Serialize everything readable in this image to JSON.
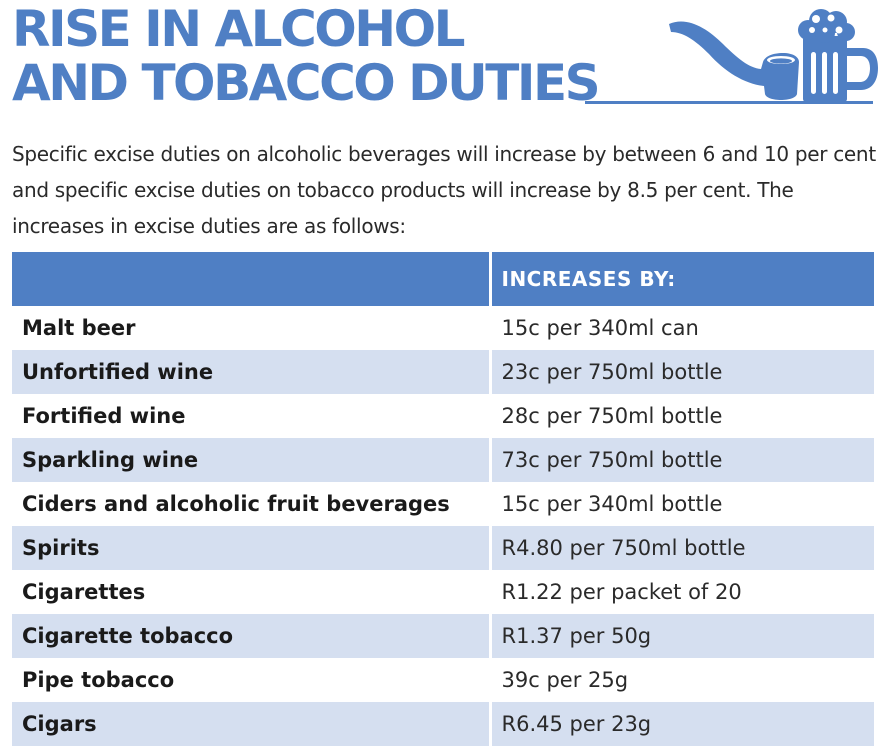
{
  "title": {
    "line1": "RISE IN ALCOHOL",
    "line2": "AND TOBACCO DUTIES"
  },
  "icons": [
    "pipe-icon",
    "beer-mug-icon"
  ],
  "intro": "Specific excise duties on alcoholic beverages will increase by between 6 and 10 per cent and specific excise duties on tobacco products will increase by 8.5 per cent. The increases in excise duties are as follows:",
  "table": {
    "header": [
      "",
      "INCREASES BY:"
    ],
    "rows": [
      {
        "item": "Malt beer",
        "increase": "15c per 340ml can"
      },
      {
        "item": "Unfortified wine",
        "increase": "23c per 750ml bottle"
      },
      {
        "item": "Fortified wine",
        "increase": "28c per 750ml bottle"
      },
      {
        "item": "Sparkling wine",
        "increase": "73c per 750ml bottle"
      },
      {
        "item": "Ciders and alcoholic fruit beverages",
        "increase": "15c per 340ml bottle"
      },
      {
        "item": "Spirits",
        "increase": "R4.80 per 750ml bottle"
      },
      {
        "item": "Cigarettes",
        "increase": "R1.22 per packet of 20"
      },
      {
        "item": "Cigarette tobacco",
        "increase": "R1.37 per 50g"
      },
      {
        "item": "Pipe tobacco",
        "increase": "39c per 25g"
      },
      {
        "item": "Cigars",
        "increase": "R6.45 per 23g"
      }
    ]
  },
  "colors": {
    "accent": "#4f7fc4",
    "row_alt": "#d5dff0"
  }
}
